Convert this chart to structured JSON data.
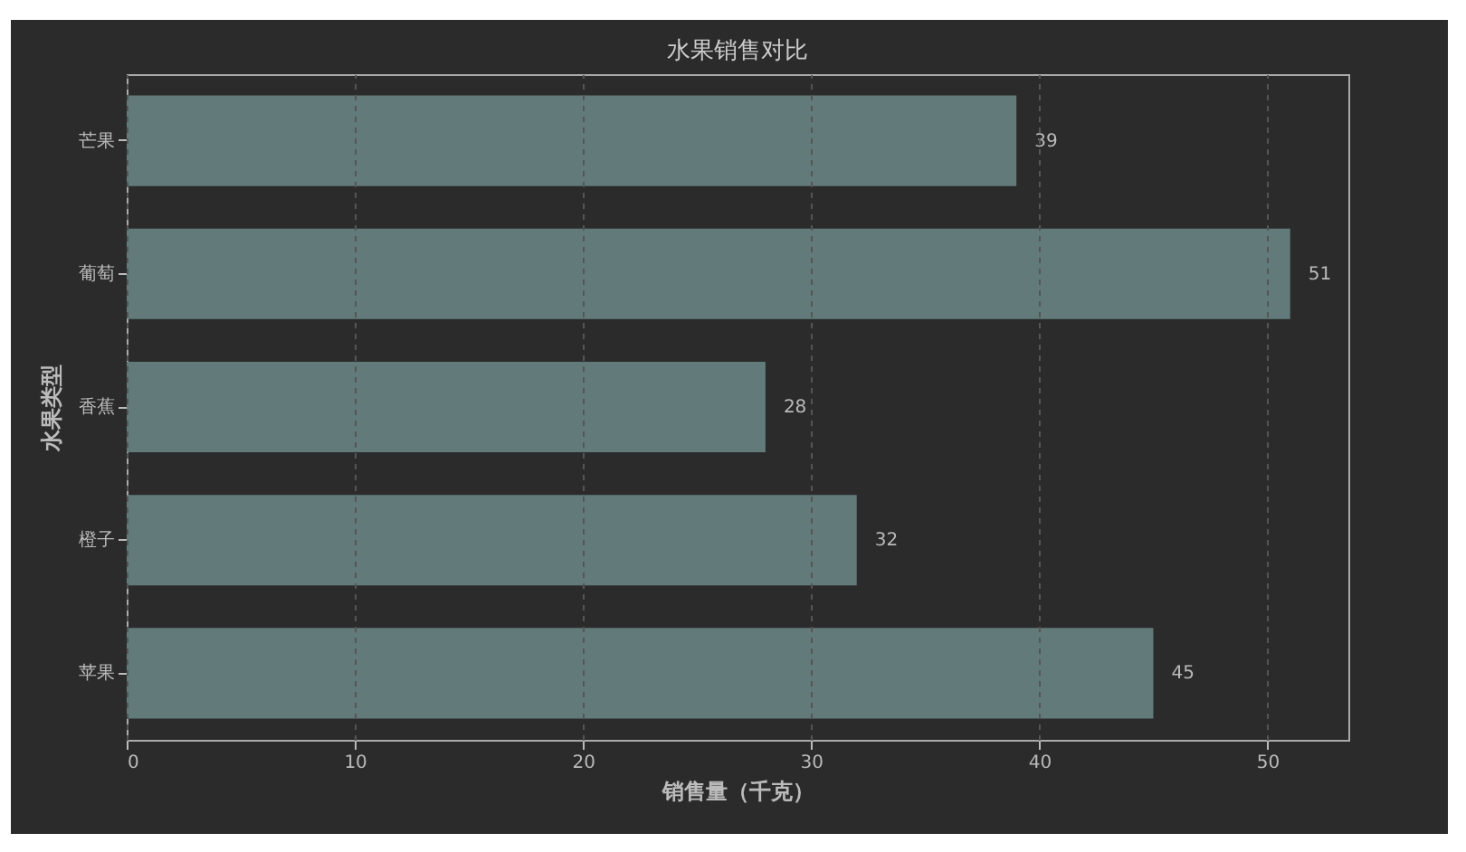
{
  "chart_data": {
    "type": "bar",
    "orientation": "horizontal",
    "title": "水果销售对比",
    "xlabel": "销售量（千克）",
    "ylabel": "水果类型",
    "categories": [
      "芒果",
      "葡萄",
      "香蕉",
      "橙子",
      "苹果"
    ],
    "values": [
      39,
      51,
      28,
      32,
      45
    ],
    "color": "#627b7a",
    "xlim": [
      0,
      53.55
    ],
    "xticks": [
      0,
      10,
      20,
      30,
      40,
      50
    ],
    "grid": "x",
    "data_labels": true
  }
}
